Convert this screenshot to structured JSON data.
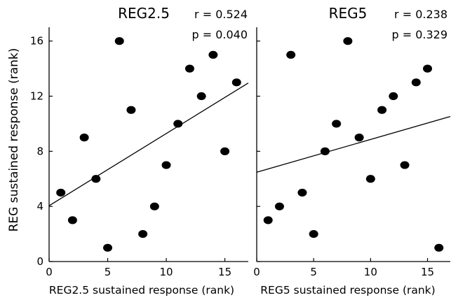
{
  "y_axis_label": "REG sustained response (rank)",
  "chart_data": [
    {
      "type": "scatter",
      "title": "REG2.5",
      "xlabel": "REG2.5 sustained response (rank)",
      "ylabel": "REG sustained response (rank)",
      "annotations": [
        "r = 0.524",
        "p = 0.040"
      ],
      "xlim": [
        0,
        17
      ],
      "ylim": [
        0,
        17
      ],
      "xticks": [
        0,
        5,
        10,
        15
      ],
      "yticks": [
        0,
        4,
        8,
        12,
        16
      ],
      "grid": false,
      "x": [
        1,
        2,
        3,
        4,
        5,
        6,
        7,
        8,
        9,
        10,
        11,
        12,
        13,
        14,
        15,
        16
      ],
      "y": [
        5,
        3,
        9,
        6,
        1,
        16,
        11,
        2,
        4,
        7,
        10,
        14,
        12,
        15,
        8,
        13
      ],
      "fit_line": {
        "intercept": 4.05,
        "slope": 0.524
      }
    },
    {
      "type": "scatter",
      "title": "REG5",
      "xlabel": "REG5 sustained response (rank)",
      "ylabel": "",
      "annotations": [
        "r = 0.238",
        "p = 0.329"
      ],
      "xlim": [
        0,
        17
      ],
      "ylim": [
        0,
        17
      ],
      "xticks": [
        0,
        5,
        10,
        15
      ],
      "yticks": [
        0,
        4,
        8,
        12,
        16
      ],
      "grid": false,
      "x": [
        1,
        2,
        3,
        4,
        5,
        6,
        7,
        8,
        9,
        10,
        11,
        12,
        13,
        14,
        15,
        16
      ],
      "y": [
        3,
        4,
        15,
        5,
        2,
        8,
        10,
        16,
        9,
        6,
        11,
        12,
        7,
        13,
        14,
        1
      ],
      "fit_line": {
        "intercept": 6.48,
        "slope": 0.238
      }
    }
  ]
}
